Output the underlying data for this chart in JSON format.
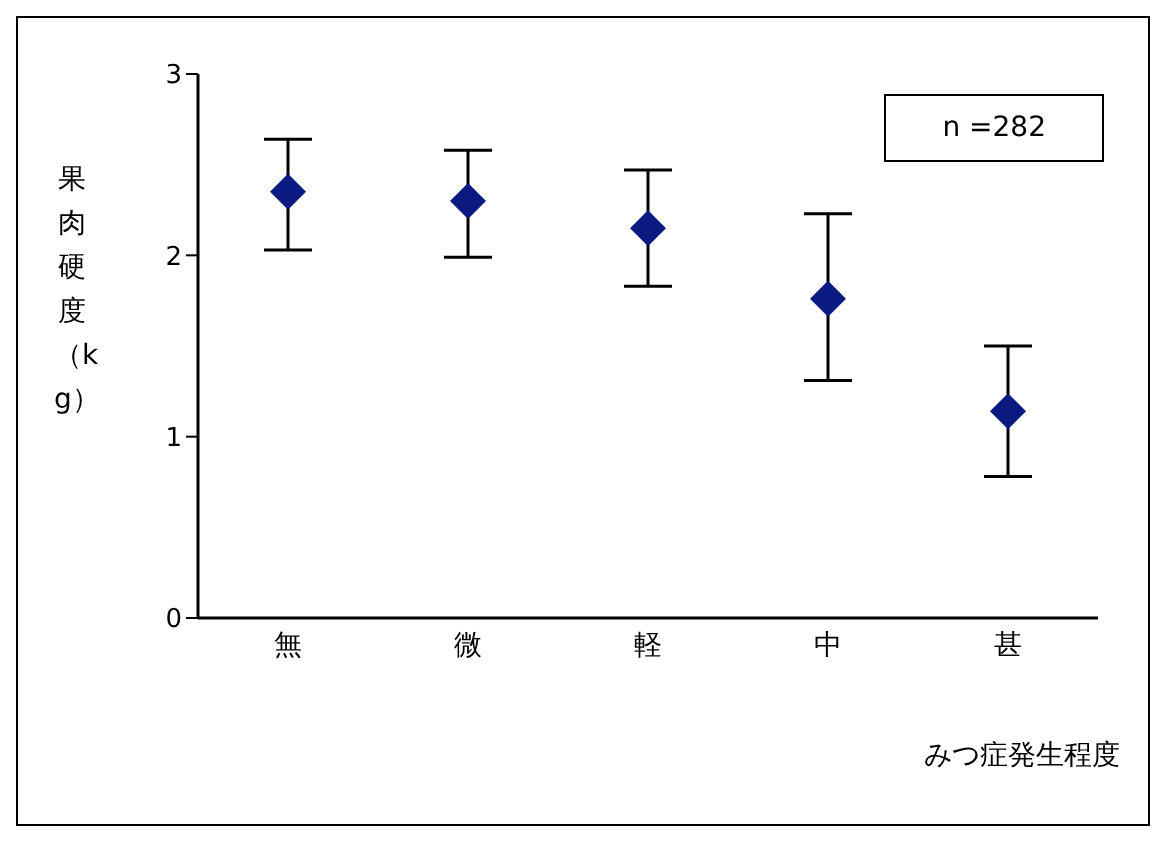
{
  "chart_data": {
    "type": "scatter",
    "xlabel": "みつ症発生程度",
    "ylabel": "果肉硬度（kg）",
    "categories": [
      "無",
      "微",
      "軽",
      "中",
      "甚"
    ],
    "series": [
      {
        "color": "#0b1a80",
        "values": [
          2.35,
          2.3,
          2.15,
          1.76,
          1.14
        ],
        "errors": [
          [
            2.03,
            2.64
          ],
          [
            1.99,
            2.58
          ],
          [
            1.83,
            2.47
          ],
          [
            1.31,
            2.23
          ],
          [
            0.78,
            1.5
          ]
        ]
      }
    ],
    "ylim": [
      0,
      3
    ],
    "yticks": [
      0,
      1,
      2,
      3
    ],
    "marker": "diamond",
    "annotations": [
      "n =282"
    ]
  }
}
